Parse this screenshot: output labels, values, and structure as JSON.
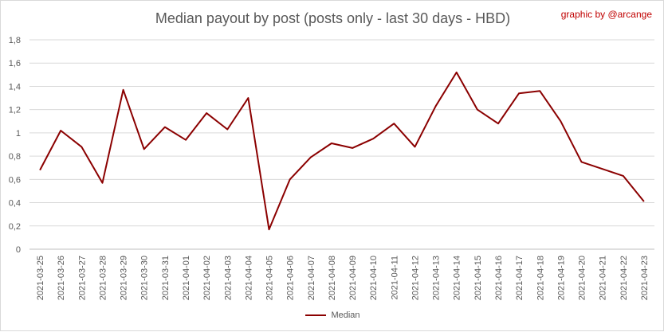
{
  "header": {
    "title": "Median payout by post (posts only - last 30 days - HBD)",
    "credit": "graphic by @arcange"
  },
  "colors": {
    "line": "#8b0000",
    "grid": "#d9d9d9",
    "axis_text": "#595959",
    "credit": "#c00000"
  },
  "chart_data": {
    "type": "line",
    "title": "Median payout by post (posts only - last 30 days - HBD)",
    "xlabel": "",
    "ylabel": "",
    "ylim": [
      0,
      1.8
    ],
    "y_ticks": [
      "0",
      "0,2",
      "0,4",
      "0,6",
      "0,8",
      "1",
      "1,2",
      "1,4",
      "1,6",
      "1,8"
    ],
    "grid": true,
    "legend": "bottom",
    "categories": [
      "2021-03-25",
      "2021-03-26",
      "2021-03-27",
      "2021-03-28",
      "2021-03-29",
      "2021-03-30",
      "2021-03-31",
      "2021-04-01",
      "2021-04-02",
      "2021-04-03",
      "2021-04-04",
      "2021-04-05",
      "2021-04-06",
      "2021-04-07",
      "2021-04-08",
      "2021-04-09",
      "2021-04-10",
      "2021-04-11",
      "2021-04-12",
      "2021-04-13",
      "2021-04-14",
      "2021-04-15",
      "2021-04-16",
      "2021-04-17",
      "2021-04-18",
      "2021-04-19",
      "2021-04-20",
      "2021-04-21",
      "2021-04-22",
      "2021-04-23"
    ],
    "series": [
      {
        "name": "Median",
        "values": [
          0.68,
          1.02,
          0.88,
          0.57,
          1.37,
          0.86,
          1.05,
          0.94,
          1.17,
          1.03,
          1.3,
          0.17,
          0.6,
          0.79,
          0.91,
          0.87,
          0.95,
          1.08,
          0.88,
          1.23,
          1.52,
          1.2,
          1.08,
          1.34,
          1.36,
          1.1,
          0.75,
          0.69,
          0.63,
          0.41
        ]
      }
    ]
  }
}
